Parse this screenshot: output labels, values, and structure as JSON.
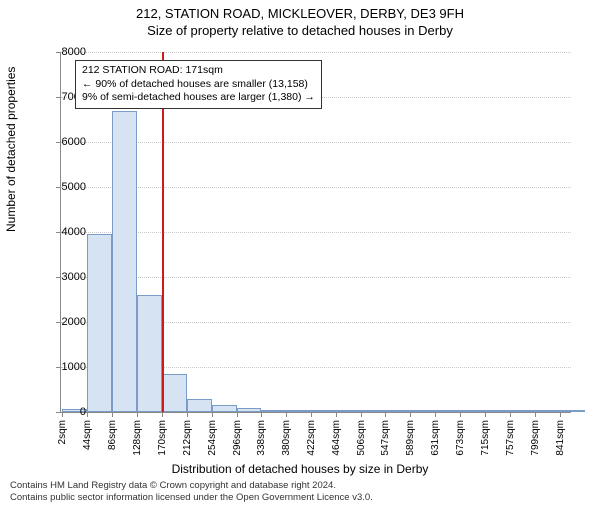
{
  "title_main": "212, STATION ROAD, MICKLEOVER, DERBY, DE3 9FH",
  "title_sub": "Size of property relative to detached houses in Derby",
  "ylabel": "Number of detached properties",
  "xlabel": "Distribution of detached houses by size in Derby",
  "chart": {
    "type": "histogram",
    "background_color": "#ffffff",
    "grid_color": "#c8c8c8",
    "axis_color": "#888888",
    "bar_fill": "#d6e3f3",
    "bar_border": "#7a9cc6",
    "ref_line_color": "#d11919",
    "ref_line_x": 171,
    "ylim": [
      0,
      8000
    ],
    "ytick_step": 1000,
    "xlim": [
      0,
      860
    ],
    "xticks": [
      2,
      44,
      86,
      128,
      170,
      212,
      254,
      296,
      338,
      380,
      422,
      464,
      506,
      547,
      589,
      631,
      673,
      715,
      757,
      799,
      841
    ],
    "xtick_suffix": "sqm",
    "bin_width": 42,
    "bins": [
      {
        "x": 2,
        "count": 70
      },
      {
        "x": 44,
        "count": 3950
      },
      {
        "x": 86,
        "count": 6700
      },
      {
        "x": 128,
        "count": 2600
      },
      {
        "x": 170,
        "count": 850
      },
      {
        "x": 212,
        "count": 300
      },
      {
        "x": 254,
        "count": 160
      },
      {
        "x": 296,
        "count": 90
      },
      {
        "x": 338,
        "count": 55
      },
      {
        "x": 380,
        "count": 40
      },
      {
        "x": 422,
        "count": 20
      },
      {
        "x": 464,
        "count": 10
      },
      {
        "x": 506,
        "count": 8
      },
      {
        "x": 547,
        "count": 6
      },
      {
        "x": 589,
        "count": 5
      },
      {
        "x": 631,
        "count": 4
      },
      {
        "x": 673,
        "count": 3
      },
      {
        "x": 715,
        "count": 2
      },
      {
        "x": 757,
        "count": 2
      },
      {
        "x": 799,
        "count": 1
      },
      {
        "x": 841,
        "count": 1
      }
    ],
    "title_fontsize": 13,
    "label_fontsize": 12,
    "tick_fontsize": 11
  },
  "annotation": {
    "line1": "212 STATION ROAD: 171sqm",
    "line2": "← 90% of detached houses are smaller (13,158)",
    "line3": "9% of semi-detached houses are larger (1,380) →",
    "box_border": "#333333",
    "box_bg": "#ffffff",
    "fontsize": 10.5
  },
  "footer": {
    "line1": "Contains HM Land Registry data © Crown copyright and database right 2024.",
    "line2": "Contains public sector information licensed under the Open Government Licence v3.0.",
    "fontsize": 9.5,
    "color": "#333333"
  }
}
